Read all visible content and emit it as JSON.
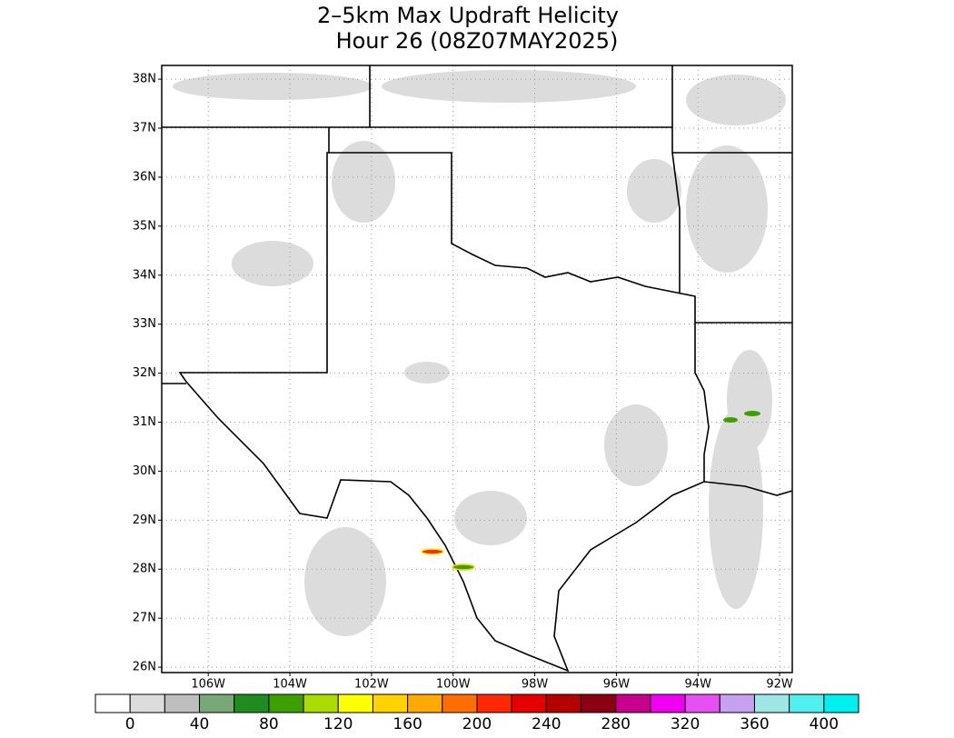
{
  "chart_data": {
    "type": "map",
    "title": "2–5km Max Updraft Helicity",
    "subtitle": "Hour 26 (08Z07MAY2025)",
    "xlim": [
      -107.14,
      -91.69
    ],
    "ylim": [
      25.89,
      38.28
    ],
    "xticks": [
      {
        "value": -106,
        "label": "106W"
      },
      {
        "value": -104,
        "label": "104W"
      },
      {
        "value": -102,
        "label": "102W"
      },
      {
        "value": -100,
        "label": "100W"
      },
      {
        "value": -98,
        "label": "98W"
      },
      {
        "value": -96,
        "label": "96W"
      },
      {
        "value": -94,
        "label": "94W"
      },
      {
        "value": -92,
        "label": "92W"
      }
    ],
    "yticks": [
      {
        "value": 26,
        "label": "26N"
      },
      {
        "value": 27,
        "label": "27N"
      },
      {
        "value": 28,
        "label": "28N"
      },
      {
        "value": 29,
        "label": "29N"
      },
      {
        "value": 30,
        "label": "30N"
      },
      {
        "value": 31,
        "label": "31N"
      },
      {
        "value": 32,
        "label": "32N"
      },
      {
        "value": 33,
        "label": "33N"
      },
      {
        "value": 34,
        "label": "34N"
      },
      {
        "value": 35,
        "label": "35N"
      },
      {
        "value": 36,
        "label": "36N"
      },
      {
        "value": 37,
        "label": "37N"
      },
      {
        "value": 38,
        "label": "38N"
      }
    ],
    "grid": true,
    "colorbar": {
      "colors": [
        "#ffffff",
        "#dcdcdc",
        "#bebebe",
        "#78a878",
        "#1e8c1e",
        "#3ca000",
        "#aadc00",
        "#ffff00",
        "#ffd200",
        "#ffaa00",
        "#ff6e00",
        "#ff2800",
        "#e60000",
        "#b40000",
        "#8c0014",
        "#c8008c",
        "#f000f0",
        "#e650f0",
        "#c8a0f0",
        "#a0e6e6",
        "#50f0f0",
        "#00f0f0"
      ],
      "labels": [
        0,
        40,
        80,
        120,
        160,
        200,
        240,
        280,
        320,
        360,
        400
      ]
    }
  }
}
